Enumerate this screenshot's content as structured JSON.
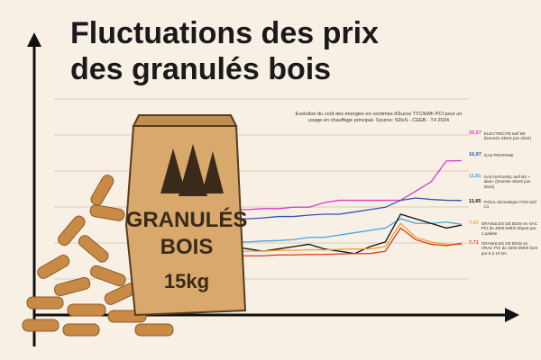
{
  "header": {
    "title_line1": "Fluctuations des prix",
    "title_line2": "des granulés bois"
  },
  "bag": {
    "line1": "GRANULÉS",
    "line2": "BOIS",
    "weight": "15kg"
  },
  "chart_data": {
    "type": "line",
    "title": "Evolution du coût des énergies en centimes d'Euros TTC/kWh PCI pour un usage en chauffage principal- Source: SDeS - CEEB - T4 2024",
    "ylim": [
      0,
      35
    ],
    "series": [
      {
        "name": "ELECTRICITE tarif B0 (Donnée SDeS juin 2024)",
        "color": "#d63cc6",
        "values": [
          15,
          15,
          15.2,
          15.2,
          15.5,
          15.5,
          16.5,
          17,
          17,
          17,
          17,
          17,
          19,
          21,
          25.5,
          25.57
        ],
        "value_labels": [
          null,
          null,
          null,
          null,
          null,
          null,
          null,
          null,
          null,
          null,
          null,
          null,
          null,
          null,
          null,
          "25,57"
        ]
      },
      {
        "name": "GAZ PROPANE",
        "color": "#2f55b0",
        "values": [
          13,
          13,
          13.2,
          13.5,
          13.5,
          13.8,
          14,
          14,
          14.5,
          15,
          15.5,
          17,
          17.5,
          17.2,
          17,
          16.97
        ],
        "value_labels": [
          null,
          null,
          null,
          null,
          null,
          null,
          null,
          null,
          null,
          null,
          null,
          null,
          null,
          null,
          null,
          "16,97"
        ]
      },
      {
        "name": "GAZ NATUREL tarif B2 + abon. (Donnée SDeS juin 2024)",
        "color": "#4aa3df",
        "values": [
          8,
          8,
          8.2,
          8.3,
          8.5,
          9,
          9,
          9.5,
          10,
          10.5,
          11,
          13,
          12,
          12,
          12.3,
          11.81
        ],
        "value_labels": [
          null,
          null,
          null,
          null,
          null,
          null,
          null,
          null,
          null,
          null,
          null,
          null,
          null,
          null,
          null,
          "11,81"
        ]
      },
      {
        "name": "FIOUL domestique FOD tarif C1",
        "color": "#111111",
        "values": [
          7,
          6.5,
          6,
          6.5,
          7,
          7.5,
          6.5,
          6,
          5.5,
          7,
          8,
          14,
          13,
          12,
          11,
          11.65
        ],
        "value_labels": [
          null,
          null,
          null,
          null,
          null,
          null,
          null,
          null,
          null,
          null,
          null,
          null,
          null,
          null,
          null,
          "11,65"
        ]
      },
      {
        "name": "GRANULES DE BOIS en SAC PCI de 4600 kWh/t départ par 1 palette",
        "color": "#f0a030",
        "values": [
          6,
          6,
          6,
          6.2,
          6.2,
          6.3,
          6.3,
          6.4,
          6.5,
          6.5,
          7,
          12,
          9,
          8,
          7.5,
          7.47
        ],
        "value_labels": [
          null,
          null,
          null,
          null,
          null,
          null,
          null,
          null,
          null,
          null,
          null,
          null,
          null,
          null,
          null,
          "7,47"
        ]
      },
      {
        "name": "GRANULES DE BOIS en VRAC PCI de 4600 kWh/t livré par 5 à 10 km",
        "color": "#e03a1a",
        "values": [
          5,
          5,
          5,
          5.2,
          5.2,
          5.3,
          5.3,
          5.4,
          5.5,
          5.5,
          6,
          11,
          8.5,
          7.5,
          7.2,
          7.71
        ],
        "value_labels": [
          null,
          null,
          null,
          null,
          null,
          null,
          null,
          null,
          null,
          null,
          null,
          null,
          null,
          null,
          null,
          "7,71"
        ]
      }
    ]
  }
}
